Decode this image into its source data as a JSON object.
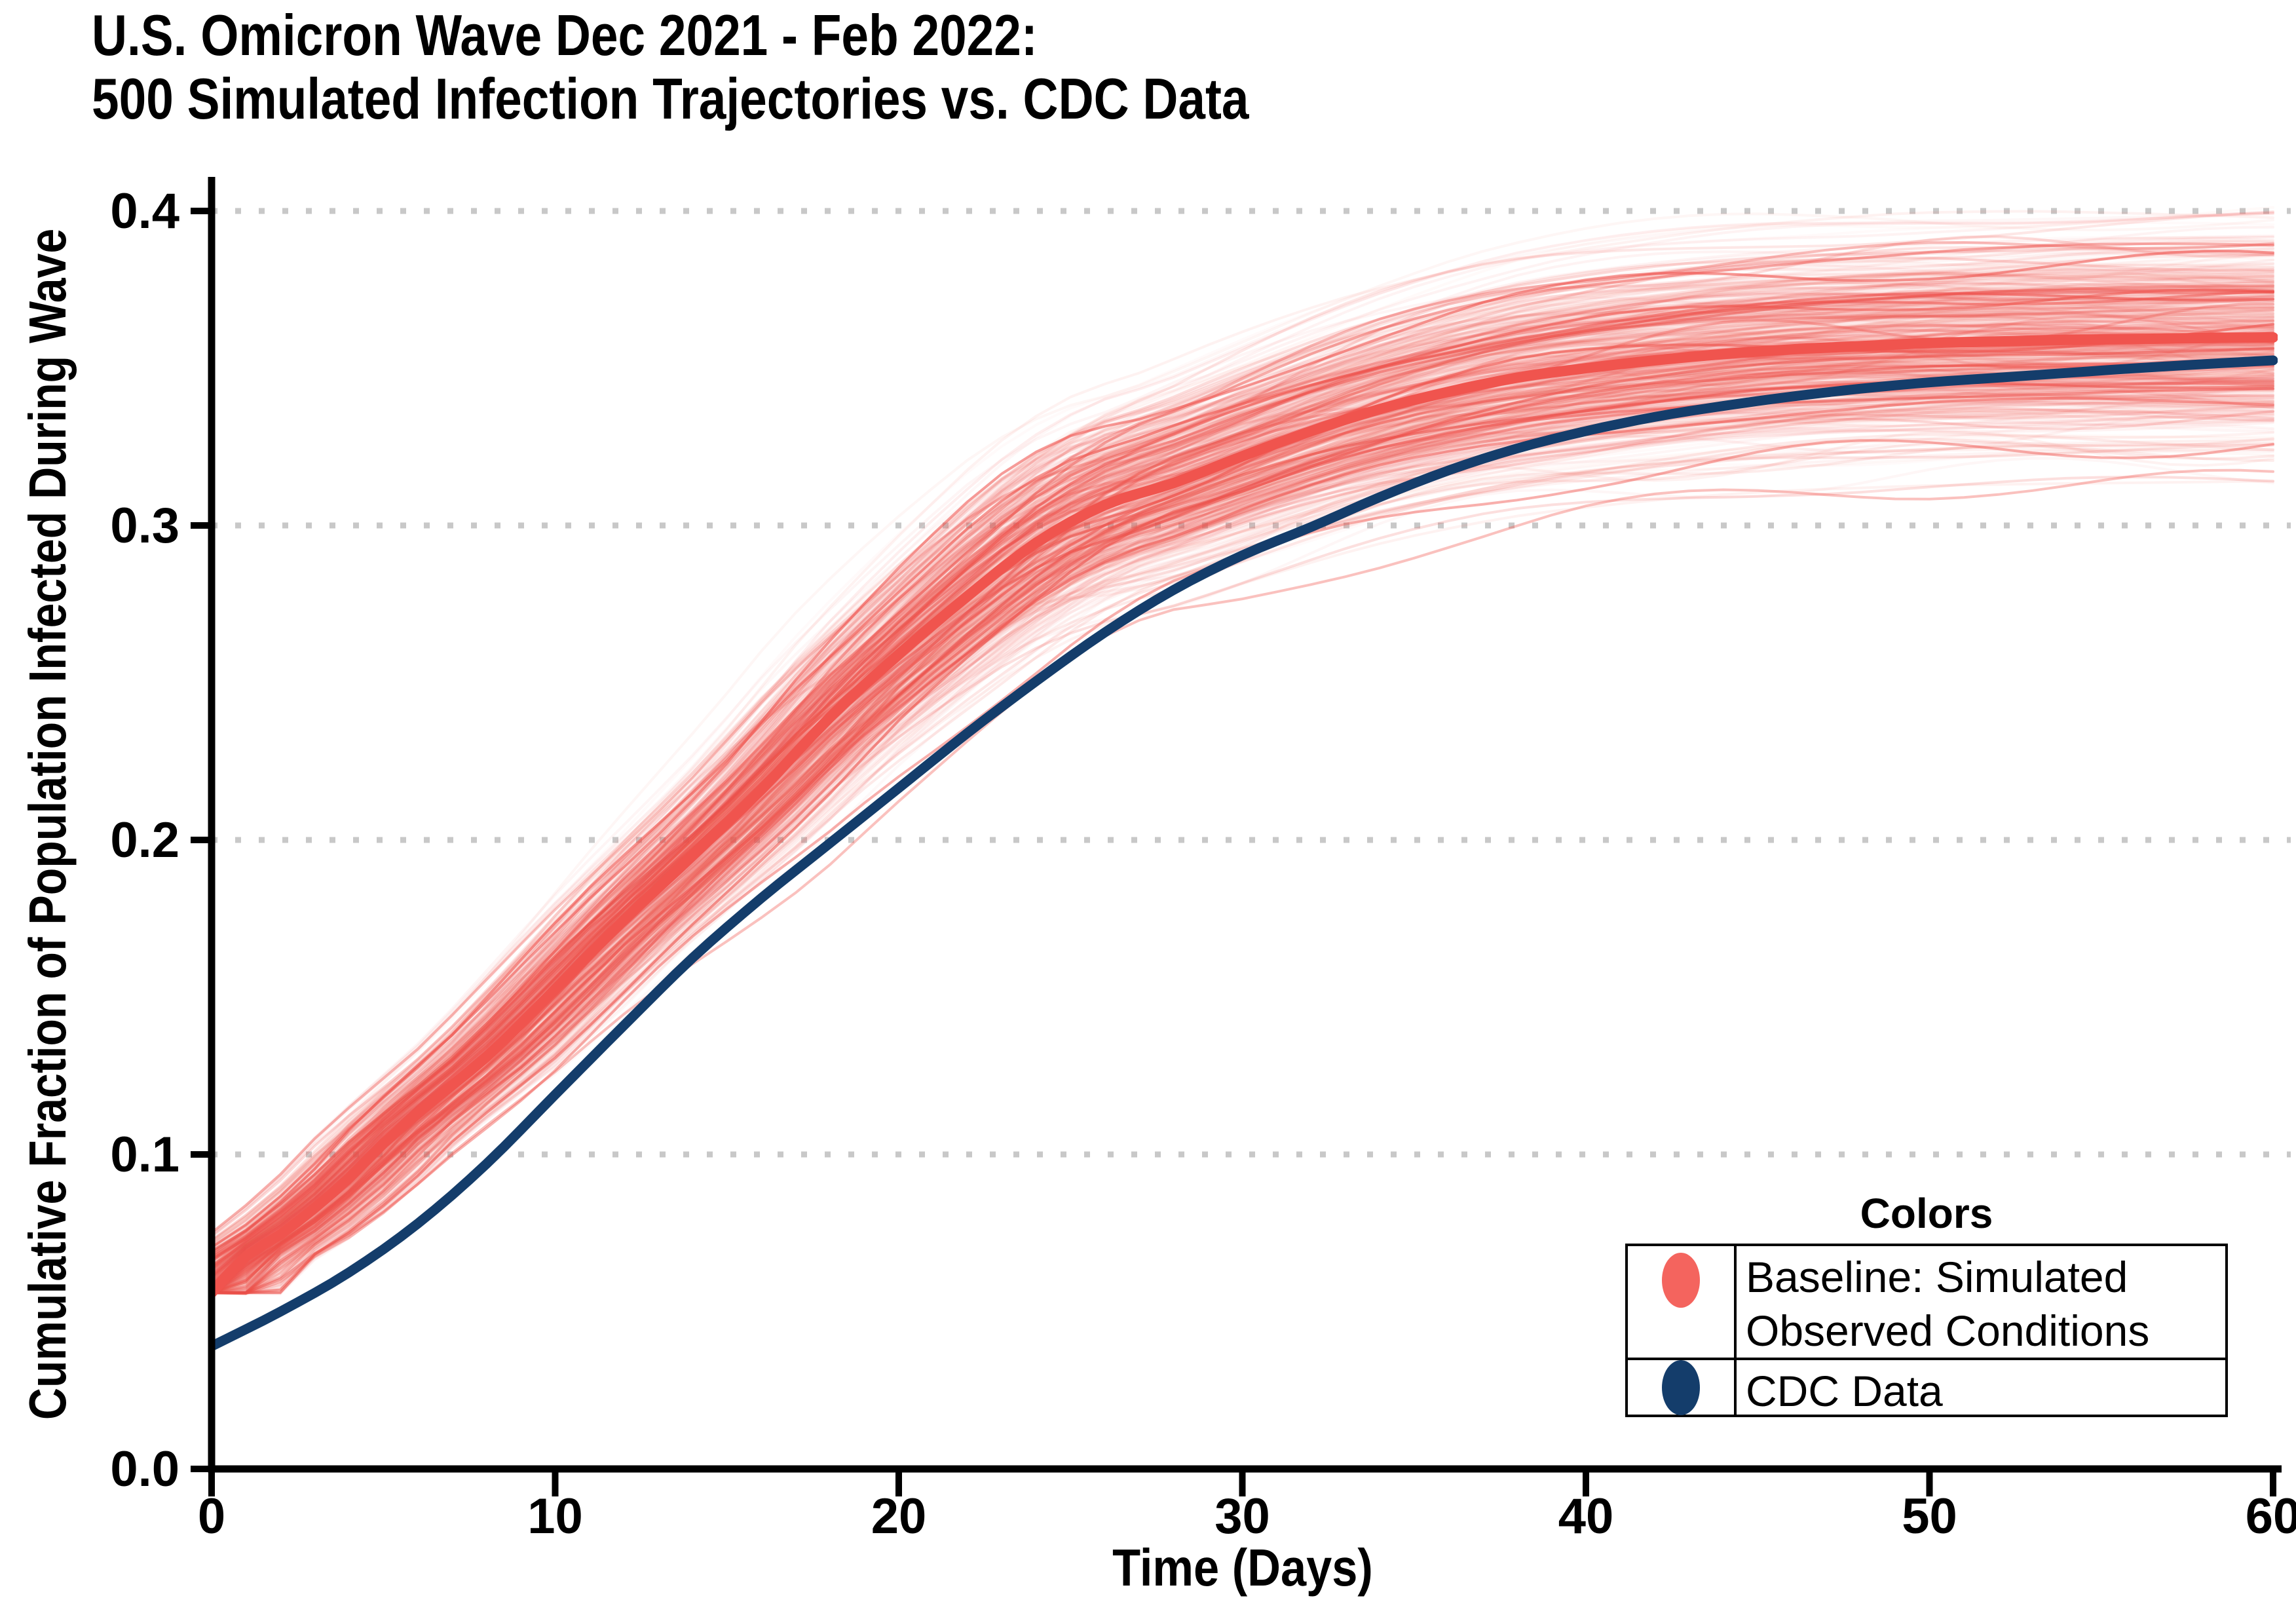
{
  "title": {
    "line1": "U.S. Omicron Wave Dec 2021 - Feb 2022:",
    "line2": "500 Simulated Infection Trajectories vs. CDC Data"
  },
  "chart_data": {
    "type": "line",
    "title": "U.S. Omicron Wave Dec 2021 - Feb 2022: 500 Simulated Infection Trajectories vs. CDC Data",
    "xlabel": "Time (Days)",
    "ylabel": "Cumulative Fraction of Population Infected During Wave",
    "xlim": [
      0,
      60
    ],
    "ylim": [
      0,
      0.4
    ],
    "x_ticks": [
      0,
      10,
      20,
      30,
      40,
      50,
      60
    ],
    "y_ticks": [
      0,
      0.1,
      0.2,
      0.3,
      0.4
    ],
    "grid": {
      "horizontal_dotted": true,
      "color": "#C8C8C8"
    },
    "n_trajectories": 500,
    "series": [
      {
        "name": "Baseline: Simulated Observed Conditions (ensemble mean)",
        "color": "#F0544E",
        "line_width": 16,
        "x": [
          0,
          1,
          2,
          3,
          4,
          5,
          6,
          7,
          8,
          9,
          10,
          12,
          14,
          16,
          18,
          20,
          22,
          24,
          26,
          28,
          30,
          32,
          34,
          36,
          38,
          40,
          42,
          44,
          46,
          48,
          50,
          52,
          54,
          56,
          58,
          60
        ],
        "y": [
          0.056,
          0.0675,
          0.0745,
          0.083,
          0.0925,
          0.1035,
          0.113,
          0.122,
          0.131,
          0.1415,
          0.1525,
          0.1745,
          0.195,
          0.216,
          0.239,
          0.259,
          0.2775,
          0.2945,
          0.3065,
          0.3135,
          0.322,
          0.33,
          0.337,
          0.3425,
          0.347,
          0.35,
          0.3525,
          0.3545,
          0.356,
          0.357,
          0.358,
          0.3585,
          0.359,
          0.3593,
          0.3596,
          0.3598
        ]
      },
      {
        "name": "CDC Data",
        "color": "#143D6B",
        "line_width": 15,
        "x": [
          0,
          2,
          4,
          6,
          8,
          10,
          12,
          14,
          16,
          18,
          20,
          22,
          24,
          26,
          28,
          30,
          32,
          34,
          36,
          38,
          40,
          42,
          44,
          46,
          48,
          50,
          52,
          54,
          56,
          58,
          60
        ],
        "y": [
          0.039,
          0.05,
          0.0625,
          0.078,
          0.097,
          0.119,
          0.141,
          0.1625,
          0.1815,
          0.199,
          0.2165,
          0.234,
          0.2505,
          0.266,
          0.2795,
          0.2905,
          0.2995,
          0.309,
          0.3175,
          0.3245,
          0.33,
          0.3345,
          0.338,
          0.341,
          0.3435,
          0.3455,
          0.347,
          0.3485,
          0.35,
          0.3513,
          0.3525
        ]
      }
    ],
    "ensemble": {
      "name": "Baseline: Simulated Observed Conditions",
      "count": 500,
      "color": "#F0544E",
      "base_value": 0.056,
      "scale_sigma": 0.058,
      "scale_clip": [
        0.85,
        1.13
      ],
      "shift_sigma": 0.9,
      "shift_clip": 2.0,
      "wobble_sigma": 0.0025,
      "seed": 42,
      "stroke_width": 4
    }
  },
  "legend": {
    "title": "Colors",
    "items": [
      {
        "label": "Baseline: Simulated Observed Conditions",
        "color": "#F4645E"
      },
      {
        "label": "CDC Data",
        "color": "#143D6B"
      }
    ]
  },
  "axis": {
    "color": "#000000",
    "tick_color": "#000000"
  }
}
